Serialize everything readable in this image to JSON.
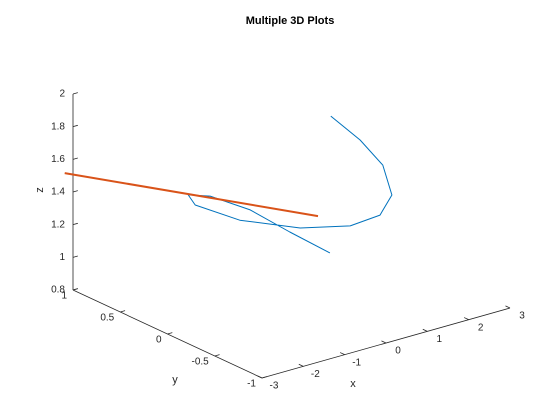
{
  "chart_data": {
    "type": "line3d",
    "title": "Multiple 3D Plots",
    "xlabel": "x",
    "ylabel": "y",
    "zlabel": "z",
    "xlim": [
      -3,
      3
    ],
    "ylim": [
      -1,
      1
    ],
    "zlim": [
      0.8,
      2
    ],
    "xticks": [
      -3,
      -2,
      -1,
      0,
      1,
      2,
      3
    ],
    "yticks": [
      -1,
      -0.5,
      0,
      0.5,
      1
    ],
    "zticks": [
      0.8,
      1,
      1.2,
      1.4,
      1.6,
      1.8,
      2
    ],
    "series": [
      {
        "color": "#0072bd",
        "x": [
          0.95,
          1.66,
          2.21,
          2.43,
          2.14,
          1.42,
          0.21,
          -1.25,
          -2.33,
          -2.5,
          -1.97,
          -1.0,
          -0.04,
          0.93
        ],
        "y": [
          0,
          0,
          0,
          0,
          0,
          0,
          0,
          0,
          0,
          0,
          0,
          0,
          0,
          0
        ],
        "z": [
          1.852,
          1.655,
          1.462,
          1.263,
          1.161,
          1.146,
          1.22,
          1.372,
          1.542,
          1.616,
          1.571,
          1.417,
          1.213,
          1.016
        ]
      },
      {
        "color": "#d95319",
        "x": [
          -3.2,
          0.64
        ],
        "y": [
          1,
          0
        ],
        "z": [
          1.53,
          1.262
        ]
      }
    ]
  }
}
